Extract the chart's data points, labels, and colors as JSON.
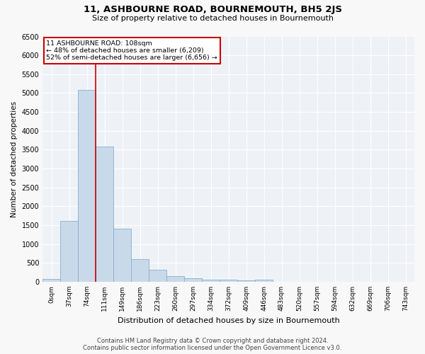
{
  "title": "11, ASHBOURNE ROAD, BOURNEMOUTH, BH5 2JS",
  "subtitle": "Size of property relative to detached houses in Bournemouth",
  "xlabel": "Distribution of detached houses by size in Bournemouth",
  "ylabel": "Number of detached properties",
  "footer_line1": "Contains HM Land Registry data © Crown copyright and database right 2024.",
  "footer_line2": "Contains public sector information licensed under the Open Government Licence v3.0.",
  "bar_labels": [
    "0sqm",
    "37sqm",
    "74sqm",
    "111sqm",
    "149sqm",
    "186sqm",
    "223sqm",
    "260sqm",
    "297sqm",
    "334sqm",
    "372sqm",
    "409sqm",
    "446sqm",
    "483sqm",
    "520sqm",
    "557sqm",
    "594sqm",
    "632sqm",
    "669sqm",
    "706sqm",
    "743sqm"
  ],
  "bar_values": [
    75,
    1620,
    5080,
    3580,
    1400,
    590,
    310,
    155,
    100,
    60,
    55,
    30,
    55,
    0,
    0,
    0,
    0,
    0,
    0,
    0,
    0
  ],
  "bar_color": "#c8d9ea",
  "bar_edge_color": "#8aafc9",
  "background_color": "#eef2f7",
  "grid_color": "#ffffff",
  "annotation_line1": "11 ASHBOURNE ROAD: 108sqm",
  "annotation_line2": "← 48% of detached houses are smaller (6,209)",
  "annotation_line3": "52% of semi-detached houses are larger (6,656) →",
  "box_edge_color": "#cc0000",
  "vline_color": "#cc0000",
  "ylim": [
    0,
    6500
  ],
  "yticks": [
    0,
    500,
    1000,
    1500,
    2000,
    2500,
    3000,
    3500,
    4000,
    4500,
    5000,
    5500,
    6000,
    6500
  ]
}
